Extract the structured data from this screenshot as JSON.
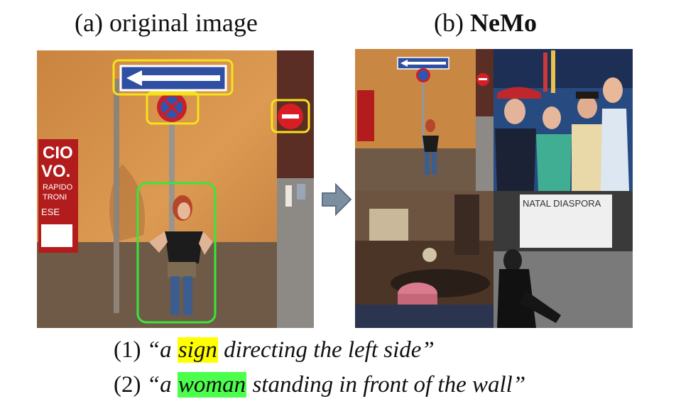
{
  "captions": {
    "a_prefix": "(a) original image",
    "b_prefix": "(b) ",
    "b_method": "NeMo"
  },
  "queries": [
    {
      "number": "(1)",
      "open": "“a ",
      "highlight": "sign",
      "rest": " directing the left side”",
      "highlight_color": "#ffff00"
    },
    {
      "number": "(2)",
      "open": "“a ",
      "highlight": "woman",
      "rest": " standing in front of the wall”",
      "highlight_color": "#4cff4c"
    }
  ],
  "scene": {
    "poster_text_1": "CIO",
    "poster_text_2": "VO.",
    "poster_text_3": "RAPIDO",
    "poster_text_4": "TRONI",
    "poster_text_5": "ESE",
    "banner_text": "NATAL DIASPORA"
  },
  "colors": {
    "box_sign": "#f5e21a",
    "box_woman": "#39e639",
    "wall": "#d9944a"
  }
}
